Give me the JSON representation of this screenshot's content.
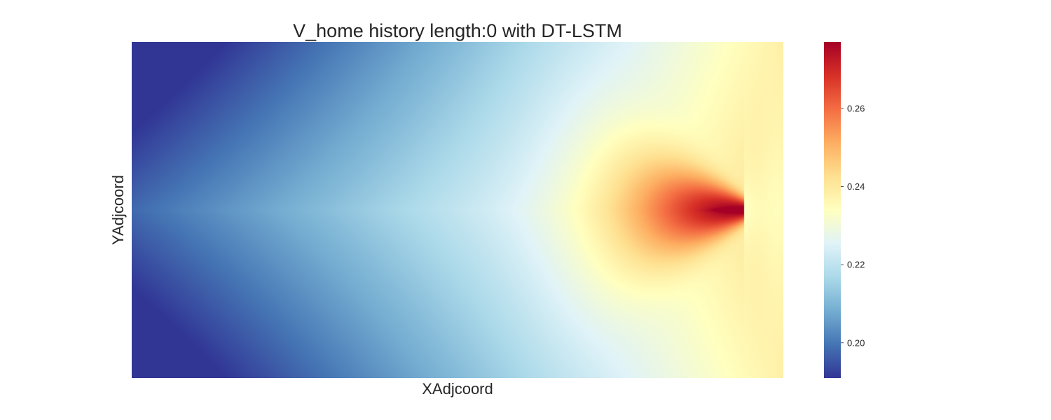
{
  "chart_data": {
    "type": "heatmap",
    "title": "V_home history length:0 with DT-LSTM",
    "xlabel": "XAdjcoord",
    "ylabel": "YAdjcoord",
    "colormap": "RdYlBu_r",
    "colors": [
      "#313695",
      "#4575b4",
      "#74add1",
      "#abd9e9",
      "#e0f3f8",
      "#ffffbf",
      "#fee090",
      "#fdae61",
      "#f46d43",
      "#d73027",
      "#a50026"
    ],
    "value_range": [
      0.191,
      0.277
    ],
    "colorbar_ticks": [
      0.2,
      0.22,
      0.24,
      0.26
    ],
    "colorbar_tick_labels": [
      "0.20",
      "0.22",
      "0.24",
      "0.26"
    ],
    "grid": false,
    "peak": {
      "x_fraction": 0.94,
      "y_fraction": 0.5,
      "value": 0.277
    }
  }
}
